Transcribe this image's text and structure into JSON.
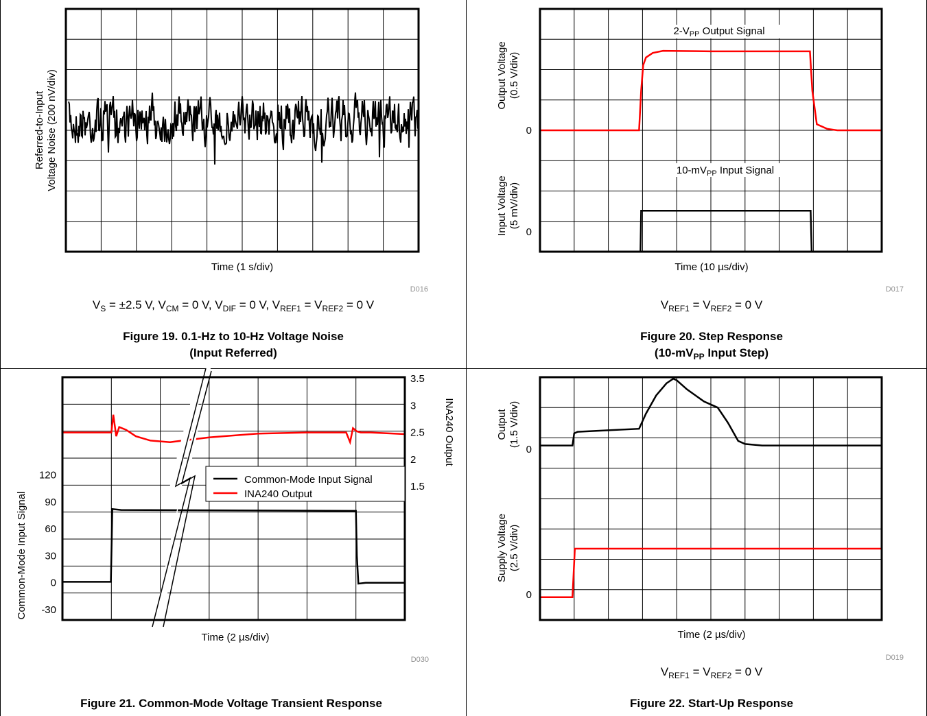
{
  "figures": [
    {
      "id": "fig19",
      "y_label_1": "Referred-to-Input",
      "y_label_2": "Voltage Noise (200 nV/div)",
      "x_label": "Time (1 s/div)",
      "code": "D016",
      "condition": "VS = ±2.5 V, VCM = 0 V, VDIF = 0 V, VREF1 = VREF2 = 0 V",
      "caption_1": "Figure 19. 0.1-Hz to 10-Hz Voltage Noise",
      "caption_2": "(Input Referred)"
    },
    {
      "id": "fig20",
      "upper_y_label_1": "Output Voltage",
      "upper_y_label_2": "(0.5 V/div)",
      "lower_y_label_1": "Input Voltage",
      "lower_y_label_2": "(5 mV/div)",
      "upper_zero": "0",
      "lower_zero": "0",
      "upper_annotation": "2-VPP Output Signal",
      "lower_annotation": "10-mVPP Input Signal",
      "x_label": "Time (10 µs/div)",
      "code": "D017",
      "condition": "VREF1 = VREF2 = 0 V",
      "caption_1": "Figure 20. Step Response",
      "caption_2": "(10-mVPP Input Step)"
    },
    {
      "id": "fig21",
      "y_label": "Common-Mode Input Signal",
      "y2_label": "INA240 Output",
      "x_label": "Time (2 µs/div)",
      "code": "D030",
      "caption_1": "Figure 21. Common-Mode Voltage Transient Response",
      "legend": [
        "Common-Mode Input Signal",
        "INA240 Output"
      ]
    },
    {
      "id": "fig22",
      "upper_y_label_1": "Output",
      "upper_y_label_2": "(1.5 V/div)",
      "lower_y_label_1": "Supply Voltage",
      "lower_y_label_2": "(2.5 V/div)",
      "upper_zero": "0",
      "lower_zero": "0",
      "x_label": "Time (2 µs/div)",
      "code": "D019",
      "condition": "VREF1 = VREF2 = 0 V",
      "caption_1": "Figure 22. Start-Up Response"
    }
  ],
  "chart_data": [
    {
      "type": "line",
      "title": "Figure 19. 0.1-Hz to 10-Hz Voltage Noise (Input Referred)",
      "xlabel": "Time (1 s/div)",
      "ylabel": "Referred-to-Input Voltage Noise (200 nV/div)",
      "grid": true,
      "x_divisions": 10,
      "y_divisions": 8,
      "xlim_div": [
        0,
        10
      ],
      "ylim_div": [
        -4,
        4
      ],
      "series": [
        {
          "color": "#000000",
          "noise_center_div": 0.3,
          "noise_pp_div": 1.9
        }
      ]
    },
    {
      "type": "line",
      "title": "Figure 20. Step Response (10-mVPP Input Step)",
      "xlabel": "Time (10 µs/div)",
      "grid": true,
      "x_divisions": 10,
      "y_divisions": 8,
      "xlim_div": [
        0,
        10
      ],
      "ylim_div": [
        0,
        8
      ],
      "series": [
        {
          "color": "#ff0000",
          "x_div": [
            0,
            2.9,
            2.96,
            3.02,
            3.1,
            3.3,
            3.6,
            5,
            7,
            7.9,
            7.97,
            8.1,
            8.4,
            8.7,
            10
          ],
          "y_div": [
            4,
            4,
            5.3,
            6.15,
            6.4,
            6.55,
            6.62,
            6.6,
            6.6,
            6.6,
            5.3,
            4.2,
            4.05,
            4,
            4
          ]
        },
        {
          "color": "#000000",
          "x_div": [
            0,
            2.94,
            2.96,
            7.92,
            7.95,
            10
          ],
          "y_div": [
            0,
            0,
            1.35,
            1.35,
            0,
            0
          ]
        }
      ]
    },
    {
      "type": "line",
      "title": "Figure 21. Common-Mode Voltage Transient Response",
      "xlabel": "Time (2 µs/div)",
      "ylabel": "Common-Mode Input Signal",
      "y2label": "INA240 Output",
      "grid": true,
      "x_divisions": 7,
      "y_ticks": [
        "120",
        "90",
        "60",
        "30",
        "0",
        "-30"
      ],
      "y2_ticks": [
        "3.5",
        "3",
        "2.5",
        "2",
        "1.5"
      ],
      "ylim": [
        -30,
        120
      ],
      "y2lim": [
        1.5,
        3.5
      ],
      "series": [
        {
          "name": "Common-Mode Input Signal",
          "color": "#000000",
          "x_div": [
            0,
            0.99,
            1.02,
            1.2,
            6.0,
            6.02,
            6.05,
            6.2,
            7
          ],
          "y": [
            1,
            1,
            82,
            81,
            80,
            30,
            -1,
            0,
            0
          ]
        },
        {
          "name": "INA240 Output",
          "color": "#ff0000",
          "x_div": [
            0,
            1.0,
            1.04,
            1.1,
            1.16,
            1.3,
            1.5,
            1.8,
            2.2,
            3.0,
            4.0,
            5.0,
            5.8,
            5.88,
            5.94,
            6.02,
            6.1,
            6.3,
            7
          ],
          "y": [
            2.5,
            2.5,
            2.83,
            2.43,
            2.6,
            2.55,
            2.43,
            2.35,
            2.32,
            2.41,
            2.48,
            2.5,
            2.5,
            2.32,
            2.58,
            2.52,
            2.5,
            2.5,
            2.47
          ]
        }
      ]
    },
    {
      "type": "line",
      "title": "Figure 22. Start-Up Response",
      "xlabel": "Time (2 µs/div)",
      "grid": true,
      "x_divisions": 10,
      "y_divisions": 8,
      "xlim_div": [
        0,
        10
      ],
      "ylim_div": [
        0,
        8
      ],
      "series": [
        {
          "color": "#000000",
          "x_div": [
            0,
            0.95,
            1.0,
            1.1,
            2.0,
            2.9,
            3.1,
            3.4,
            3.7,
            3.9,
            4.0,
            4.3,
            4.8,
            5.2,
            5.5,
            5.8,
            6.0,
            6.5,
            7,
            10
          ],
          "y_div": [
            5.75,
            5.75,
            6.15,
            6.2,
            6.25,
            6.3,
            6.8,
            7.4,
            7.8,
            7.95,
            7.9,
            7.6,
            7.2,
            7.0,
            6.5,
            5.9,
            5.8,
            5.75,
            5.75,
            5.75
          ]
        },
        {
          "color": "#ff0000",
          "x_div": [
            0,
            0.95,
            1.02,
            10
          ],
          "y_div": [
            0.75,
            0.75,
            2.35,
            2.35
          ]
        }
      ]
    }
  ]
}
